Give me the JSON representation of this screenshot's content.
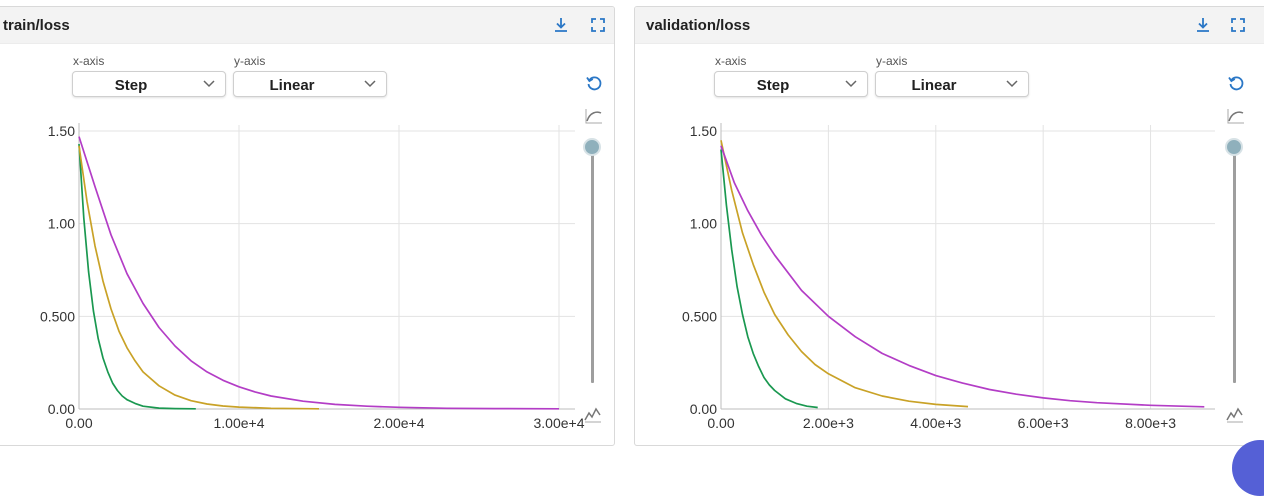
{
  "colors": {
    "run_a": "#1a9850",
    "run_b": "#c9a227",
    "run_c": "#b33dc6",
    "icon_blue": "#2a77c6",
    "grid": "#e3e3e3"
  },
  "icons": {
    "download": "download-icon",
    "fullscreen": "fullscreen-icon",
    "reset": "reset-icon",
    "smoothing": "smoothing-icon",
    "line_type": "line-chart-icon"
  },
  "cards": [
    {
      "title": "train/loss",
      "x_axis_label": "x-axis",
      "y_axis_label": "y-axis",
      "x_axis_value": "Step",
      "y_axis_value": "Linear",
      "smoothing": 0
    },
    {
      "title": "validation/loss",
      "x_axis_label": "x-axis",
      "y_axis_label": "y-axis",
      "x_axis_value": "Step",
      "y_axis_value": "Linear",
      "smoothing": 0
    }
  ],
  "chart_data": [
    {
      "type": "line",
      "title": "train/loss",
      "xlabel": "",
      "ylabel": "",
      "xlim": [
        0,
        31000
      ],
      "ylim": [
        0,
        1.5
      ],
      "x_ticks": [
        0,
        10000,
        20000,
        30000
      ],
      "x_tick_labels": [
        "0.00",
        "1.00e+4",
        "2.00e+4",
        "3.00e+4"
      ],
      "y_ticks": [
        0,
        0.5,
        1.0,
        1.5
      ],
      "y_tick_labels": [
        "0.00",
        "0.500",
        "1.00",
        "1.50"
      ],
      "grid": true,
      "series": [
        {
          "color": "#1a9850",
          "x": [
            0,
            300,
            600,
            900,
            1200,
            1500,
            1800,
            2100,
            2400,
            2700,
            3000,
            3500,
            4000,
            5000,
            6000,
            7300
          ],
          "y": [
            1.43,
            1.03,
            0.74,
            0.53,
            0.38,
            0.275,
            0.2,
            0.14,
            0.1,
            0.07,
            0.05,
            0.03,
            0.015,
            0.005,
            0.002,
            0.001
          ]
        },
        {
          "color": "#c9a227",
          "x": [
            0,
            500,
            1000,
            1500,
            2000,
            2500,
            3000,
            3500,
            4000,
            5000,
            6000,
            7000,
            8000,
            9000,
            10000,
            12000,
            15000
          ],
          "y": [
            1.42,
            1.12,
            0.88,
            0.69,
            0.54,
            0.42,
            0.33,
            0.26,
            0.2,
            0.125,
            0.075,
            0.045,
            0.027,
            0.016,
            0.01,
            0.004,
            0.001
          ]
        },
        {
          "color": "#b33dc6",
          "x": [
            0,
            1000,
            2000,
            3000,
            4000,
            5000,
            6000,
            7000,
            8000,
            9000,
            10000,
            11000,
            12000,
            14000,
            16000,
            18000,
            20000,
            23000,
            26000,
            30000
          ],
          "y": [
            1.47,
            1.2,
            0.94,
            0.73,
            0.57,
            0.44,
            0.34,
            0.26,
            0.2,
            0.155,
            0.12,
            0.092,
            0.07,
            0.042,
            0.025,
            0.015,
            0.009,
            0.004,
            0.002,
            0.001
          ]
        }
      ]
    },
    {
      "type": "line",
      "title": "validation/loss",
      "xlabel": "",
      "ylabel": "",
      "xlim": [
        0,
        9200
      ],
      "ylim": [
        0,
        1.5
      ],
      "x_ticks": [
        0,
        2000,
        4000,
        6000,
        8000
      ],
      "x_tick_labels": [
        "0.00",
        "2.00e+3",
        "4.00e+3",
        "6.00e+3",
        "8.00e+3"
      ],
      "y_ticks": [
        0,
        0.5,
        1.0,
        1.5
      ],
      "y_tick_labels": [
        "0.00",
        "0.500",
        "1.00",
        "1.50"
      ],
      "grid": true,
      "series": [
        {
          "color": "#1a9850",
          "x": [
            0,
            100,
            200,
            300,
            400,
            500,
            600,
            700,
            800,
            900,
            1000,
            1200,
            1400,
            1600,
            1800
          ],
          "y": [
            1.4,
            1.1,
            0.86,
            0.66,
            0.51,
            0.39,
            0.3,
            0.23,
            0.17,
            0.13,
            0.1,
            0.055,
            0.03,
            0.015,
            0.008
          ]
        },
        {
          "color": "#c9a227",
          "x": [
            0,
            200,
            400,
            600,
            800,
            1000,
            1250,
            1500,
            1750,
            2000,
            2500,
            3000,
            3500,
            4000,
            4600
          ],
          "y": [
            1.45,
            1.18,
            0.95,
            0.78,
            0.63,
            0.51,
            0.4,
            0.31,
            0.24,
            0.19,
            0.115,
            0.07,
            0.042,
            0.025,
            0.013
          ]
        },
        {
          "color": "#b33dc6",
          "x": [
            0,
            250,
            500,
            750,
            1000,
            1500,
            2000,
            2500,
            3000,
            3500,
            4000,
            4500,
            5000,
            5500,
            6000,
            6500,
            7000,
            8000,
            9000
          ],
          "y": [
            1.42,
            1.22,
            1.07,
            0.94,
            0.83,
            0.64,
            0.5,
            0.39,
            0.3,
            0.235,
            0.18,
            0.14,
            0.105,
            0.08,
            0.06,
            0.045,
            0.034,
            0.02,
            0.012
          ]
        }
      ]
    }
  ]
}
